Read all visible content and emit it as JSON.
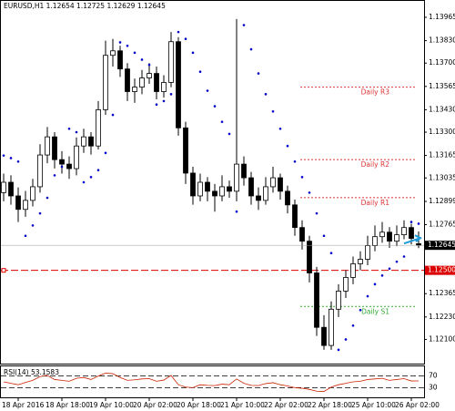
{
  "chart_data": {
    "type": "candlestick",
    "title": "EURUSD,H1 1.12654 1.12725 1.12629 1.12645",
    "open": [
      1.1295,
      1.1301,
      1.12931,
      1.12853,
      1.12905,
      1.12984,
      1.13168,
      1.13273,
      1.13141,
      1.13115,
      1.13089,
      1.1322,
      1.13273,
      1.1322,
      1.1343,
      1.13745,
      1.13771,
      1.13666,
      1.13535,
      1.13561,
      1.13614,
      1.1364,
      1.13535,
      1.13588,
      1.13824,
      1.13325,
      1.13063,
      1.12931,
      1.1301,
      1.12958,
      1.12931,
      1.12984,
      1.12958,
      1.13115,
      1.13036,
      1.12931,
      1.12905,
      1.12984,
      1.13036,
      1.12958,
      1.12879,
      1.12748,
      1.12669,
      1.12485,
      1.1217,
      1.12065,
      1.12275,
      1.1238,
      1.12459,
      1.12538,
      1.12564,
      1.12643,
      1.12695,
      1.12721,
      1.12669,
      1.12706,
      1.12748,
      1.12654
    ],
    "high": [
      1.1306,
      1.1305,
      1.1298,
      1.1296,
      1.1303,
      1.1323,
      1.1333,
      1.133,
      1.1319,
      1.1316,
      1.1327,
      1.1332,
      1.133,
      1.1348,
      1.1383,
      1.1384,
      1.138,
      1.137,
      1.1361,
      1.1366,
      1.137,
      1.1368,
      1.1363,
      1.1388,
      1.1385,
      1.1336,
      1.131,
      1.1306,
      1.1304,
      1.13,
      1.1305,
      1.1302,
      1.13955,
      1.1316,
      1.1307,
      1.1298,
      1.1304,
      1.131,
      1.1306,
      1.1299,
      1.1291,
      1.1279,
      1.127,
      1.1252,
      1.1224,
      1.1232,
      1.1242,
      1.125,
      1.1258,
      1.1261,
      1.127,
      1.1276,
      1.1278,
      1.1275,
      1.1276,
      1.1279,
      1.1277,
      1.12725
    ],
    "low": [
      1.129,
      1.1288,
      1.1278,
      1.1281,
      1.1287,
      1.1295,
      1.1312,
      1.1309,
      1.1306,
      1.1303,
      1.1305,
      1.1318,
      1.1317,
      1.132,
      1.134,
      1.1368,
      1.1362,
      1.1348,
      1.1347,
      1.1352,
      1.1358,
      1.1349,
      1.135,
      1.1356,
      1.1328,
      1.13,
      1.1288,
      1.129,
      1.129,
      1.1284,
      1.129,
      1.1292,
      1.129,
      1.1299,
      1.1288,
      1.1285,
      1.1288,
      1.1295,
      1.1291,
      1.1283,
      1.127,
      1.1262,
      1.1243,
      1.1212,
      1.1204,
      1.1204,
      1.1223,
      1.1234,
      1.1242,
      1.125,
      1.1253,
      1.1261,
      1.1266,
      1.1263,
      1.1264,
      1.1268,
      1.1265,
      1.12629
    ],
    "close": [
      1.1301,
      1.12931,
      1.12853,
      1.12905,
      1.12984,
      1.13168,
      1.13273,
      1.13141,
      1.13115,
      1.13089,
      1.1322,
      1.13273,
      1.1322,
      1.1343,
      1.13745,
      1.13771,
      1.13666,
      1.13535,
      1.13561,
      1.13614,
      1.1364,
      1.13535,
      1.13588,
      1.13824,
      1.13325,
      1.13063,
      1.12931,
      1.1301,
      1.12958,
      1.12931,
      1.12984,
      1.12958,
      1.13115,
      1.13036,
      1.12931,
      1.12905,
      1.12984,
      1.13036,
      1.12958,
      1.12879,
      1.12748,
      1.12669,
      1.12485,
      1.1217,
      1.12065,
      1.12275,
      1.1238,
      1.12459,
      1.12538,
      1.12564,
      1.12643,
      1.12695,
      1.12721,
      1.12669,
      1.12706,
      1.12748,
      1.12685,
      1.12645
    ],
    "sar": {
      "color": "#0000cc",
      "values": [
        1.13165,
        1.1315,
        1.1313,
        1.127,
        1.1276,
        1.1283,
        1.1292,
        1.1305,
        1.131,
        1.1332,
        1.133,
        1.1301,
        1.1304,
        1.1308,
        1.1318,
        1.134,
        1.1382,
        1.138,
        1.1376,
        1.1372,
        1.1369,
        1.1346,
        1.1348,
        1.1352,
        1.1388,
        1.1384,
        1.1376,
        1.1365,
        1.1354,
        1.1345,
        1.1336,
        1.1329,
        1.1284,
        1.1392,
        1.1378,
        1.1364,
        1.1352,
        1.1342,
        1.1332,
        1.1322,
        1.1313,
        1.1304,
        1.1295,
        1.1283,
        1.127,
        1.126,
        1.1204,
        1.121,
        1.1218,
        1.1227,
        1.1235,
        1.1242,
        1.1247,
        1.1251,
        1.1255,
        1.1258,
        1.1278,
        1.1277
      ]
    },
    "ylim": [
      1.1196,
      1.1406
    ],
    "yticks": [
      1.13965,
      {
        "value": 1.1383,
        "label": "1.13830"
      },
      {
        "value": 1.137,
        "label": "1.13700"
      },
      1.13565,
      {
        "value": 1.1343,
        "label": "1.13430"
      },
      {
        "value": 1.133,
        "label": "1.13300"
      },
      1.13165,
      1.13035,
      1.12899,
      1.12765,
      1.12365,
      {
        "value": 1.1223,
        "label": "1.12230"
      },
      {
        "value": 1.121,
        "label": "1.12100"
      }
    ],
    "last_price": 1.12645,
    "levels": [
      {
        "value": 1.125,
        "label": "1.12500",
        "color": "#dd0000"
      }
    ],
    "pivots": [
      {
        "name": "Daily R3",
        "value": 1.13561,
        "color": "#dd3333"
      },
      {
        "name": "Daily R2",
        "value": 1.13141,
        "color": "#dd3333"
      },
      {
        "name": "Daily R1",
        "value": 1.12921,
        "color": "#dd3333"
      },
      {
        "name": "Daily S1",
        "value": 1.12291,
        "color": "#33aa33"
      }
    ],
    "xticks": [
      {
        "value": 2,
        "label": "18 Apr 2016"
      },
      {
        "value": 8,
        "label": "18 Apr 18:00"
      },
      {
        "value": 14,
        "label": "19 Apr 10:00"
      },
      {
        "value": 20,
        "label": "20 Apr 02:00"
      },
      {
        "value": 26,
        "label": "20 Apr 18:00"
      },
      {
        "value": 32,
        "label": "21 Apr 10:00"
      },
      {
        "value": 38,
        "label": "22 Apr 02:00"
      },
      {
        "value": 44,
        "label": "22 Apr 18:00"
      },
      {
        "value": 50,
        "label": "25 Apr 10:00"
      },
      {
        "value": 56,
        "label": "26 Apr 02:00"
      }
    ],
    "rsi": {
      "label": "RSI(14) 53.1583",
      "color": "#cc2200",
      "ylim": [
        0,
        100
      ],
      "yticks": [
        70,
        30
      ],
      "values": [
        50,
        45,
        40,
        48,
        55,
        68,
        72,
        58,
        55,
        52,
        62,
        65,
        58,
        70,
        80,
        78,
        65,
        55,
        57,
        60,
        61,
        52,
        56,
        72,
        40,
        32,
        30,
        40,
        38,
        37,
        42,
        40,
        60,
        45,
        38,
        37,
        44,
        47,
        40,
        36,
        30,
        28,
        24,
        18,
        17,
        32,
        40,
        45,
        50,
        52,
        58,
        60,
        62,
        55,
        58,
        61,
        53,
        53.1583
      ]
    }
  }
}
